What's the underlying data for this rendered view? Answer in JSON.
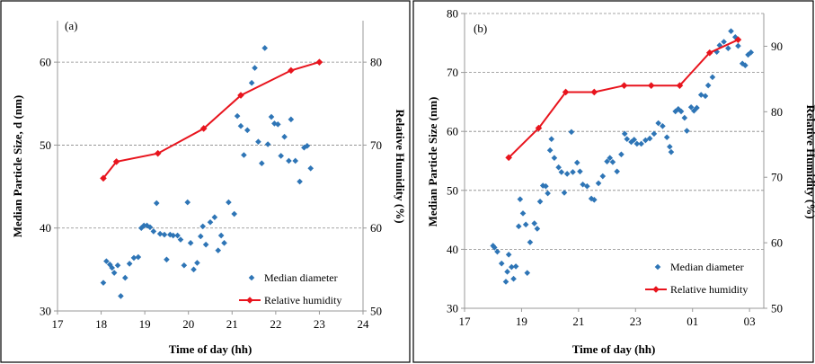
{
  "chart_data": [
    {
      "type": "scatter",
      "panel_label": "(a)",
      "xlabel": "Time of day (hh)",
      "ylabel": "Median Particle Size, d (nm)",
      "y2label": "Relative Humidity (%)",
      "xlim": [
        17,
        24
      ],
      "ylim": [
        30,
        65
      ],
      "y2lim": [
        50,
        85
      ],
      "xticks": [
        "17",
        "18",
        "19",
        "20",
        "21",
        "22",
        "23",
        "24"
      ],
      "yticks": [
        "30",
        "40",
        "50",
        "60"
      ],
      "y2ticks": [
        "50",
        "60",
        "70",
        "80"
      ],
      "grid": "horizontal dashed at major y ticks",
      "legend": [
        "Median diameter",
        "Relative humidity"
      ],
      "legend_position": "bottom-right",
      "colors": {
        "scatter": "#2e75b6",
        "line": "#e8141d"
      },
      "series": [
        {
          "name": "Median diameter",
          "axis": "left",
          "marker": "diamond",
          "points": [
            [
              18.05,
              33.4
            ],
            [
              18.12,
              36
            ],
            [
              18.2,
              35.6
            ],
            [
              18.25,
              35.2
            ],
            [
              18.3,
              34.6
            ],
            [
              18.38,
              35.5
            ],
            [
              18.45,
              31.8
            ],
            [
              18.55,
              34
            ],
            [
              18.65,
              35.7
            ],
            [
              18.75,
              36.4
            ],
            [
              18.85,
              36.5
            ],
            [
              18.92,
              40
            ],
            [
              18.98,
              40.3
            ],
            [
              19.05,
              40.3
            ],
            [
              19.12,
              40.1
            ],
            [
              19.2,
              39.6
            ],
            [
              19.27,
              43
            ],
            [
              19.35,
              39.3
            ],
            [
              19.45,
              39.2
            ],
            [
              19.5,
              36.2
            ],
            [
              19.58,
              39.2
            ],
            [
              19.65,
              39.1
            ],
            [
              19.75,
              39.1
            ],
            [
              19.82,
              38.6
            ],
            [
              19.9,
              35.5
            ],
            [
              19.98,
              43.1
            ],
            [
              20.05,
              38.2
            ],
            [
              20.12,
              35
            ],
            [
              20.2,
              35.8
            ],
            [
              20.28,
              39
            ],
            [
              20.33,
              40.2
            ],
            [
              20.4,
              38
            ],
            [
              20.5,
              40.7
            ],
            [
              20.6,
              41.3
            ],
            [
              20.68,
              37.3
            ],
            [
              20.75,
              39.1
            ],
            [
              20.82,
              38.2
            ],
            [
              20.92,
              43.1
            ],
            [
              21.05,
              41.7
            ],
            [
              21.12,
              53.5
            ],
            [
              21.2,
              52.3
            ],
            [
              21.27,
              48.8
            ],
            [
              21.35,
              51.8
            ],
            [
              21.45,
              57.5
            ],
            [
              21.52,
              59.3
            ],
            [
              21.6,
              50.4
            ],
            [
              21.68,
              47.8
            ],
            [
              21.75,
              61.7
            ],
            [
              21.82,
              50.1
            ],
            [
              21.9,
              53.4
            ],
            [
              21.97,
              52.6
            ],
            [
              22.05,
              52.5
            ],
            [
              22.12,
              48.7
            ],
            [
              22.2,
              51
            ],
            [
              22.3,
              48.1
            ],
            [
              22.35,
              53.1
            ],
            [
              22.45,
              48.1
            ],
            [
              22.55,
              45.6
            ],
            [
              22.65,
              49.7
            ],
            [
              22.72,
              49.9
            ],
            [
              22.8,
              47.2
            ]
          ]
        },
        {
          "name": "Relative humidity",
          "axis": "right",
          "marker": "diamond",
          "points": [
            [
              18.05,
              66
            ],
            [
              18.35,
              68
            ],
            [
              19.3,
              69
            ],
            [
              20.35,
              72
            ],
            [
              21.2,
              76
            ],
            [
              22.35,
              79
            ],
            [
              23.0,
              80
            ]
          ]
        }
      ]
    },
    {
      "type": "scatter",
      "panel_label": "(b)",
      "xlabel": "Time of day (hh)",
      "ylabel": "Median Particle Size (nm)",
      "y2label": "Relative Humidity (%)",
      "xlim": [
        17,
        27.5
      ],
      "ylim": [
        30,
        80
      ],
      "y2lim": [
        50,
        95
      ],
      "xticks": [
        "17",
        "19",
        "21",
        "23",
        "01",
        "03"
      ],
      "xtick_positions": [
        17,
        19,
        21,
        23,
        25,
        27
      ],
      "yticks": [
        "30",
        "40",
        "50",
        "60",
        "70",
        "80"
      ],
      "y2ticks": [
        "50",
        "60",
        "70",
        "80",
        "90"
      ],
      "grid": "horizontal dashed at major y ticks",
      "legend": [
        "Median diameter",
        "Relative humidity"
      ],
      "legend_position": "bottom-right",
      "colors": {
        "scatter": "#2e75b6",
        "line": "#e8141d"
      },
      "series": [
        {
          "name": "Median diameter",
          "axis": "left",
          "marker": "diamond",
          "points": [
            [
              18.0,
              40.6
            ],
            [
              18.05,
              40.3
            ],
            [
              18.15,
              39.6
            ],
            [
              18.3,
              37.6
            ],
            [
              18.45,
              34.5
            ],
            [
              18.5,
              36.2
            ],
            [
              18.55,
              39.1
            ],
            [
              18.65,
              37
            ],
            [
              18.72,
              35
            ],
            [
              18.8,
              37.1
            ],
            [
              18.9,
              43.9
            ],
            [
              18.95,
              48.5
            ],
            [
              19.05,
              46.1
            ],
            [
              19.15,
              44.2
            ],
            [
              19.2,
              36
            ],
            [
              19.3,
              41.2
            ],
            [
              19.45,
              44.4
            ],
            [
              19.55,
              43.5
            ],
            [
              19.65,
              48.1
            ],
            [
              19.75,
              50.8
            ],
            [
              19.85,
              50.7
            ],
            [
              19.92,
              49.5
            ],
            [
              20.0,
              56.8
            ],
            [
              20.05,
              58.7
            ],
            [
              20.15,
              55.5
            ],
            [
              20.3,
              53.9
            ],
            [
              20.4,
              53.1
            ],
            [
              20.5,
              49.6
            ],
            [
              20.6,
              52.8
            ],
            [
              20.75,
              59.9
            ],
            [
              20.8,
              53.1
            ],
            [
              20.95,
              54.7
            ],
            [
              21.05,
              53.2
            ],
            [
              21.15,
              51
            ],
            [
              21.3,
              50.7
            ],
            [
              21.45,
              48.6
            ],
            [
              21.55,
              48.4
            ],
            [
              21.7,
              51.2
            ],
            [
              21.85,
              52.4
            ],
            [
              22.0,
              54.9
            ],
            [
              22.1,
              55.5
            ],
            [
              22.2,
              54.8
            ],
            [
              22.35,
              53.2
            ],
            [
              22.5,
              56.1
            ],
            [
              22.62,
              59.6
            ],
            [
              22.7,
              58.7
            ],
            [
              22.85,
              58.2
            ],
            [
              22.95,
              58.6
            ],
            [
              23.05,
              57.9
            ],
            [
              23.2,
              57.9
            ],
            [
              23.35,
              58.5
            ],
            [
              23.5,
              58.8
            ],
            [
              23.65,
              59.6
            ],
            [
              23.8,
              61.4
            ],
            [
              23.95,
              60.9
            ],
            [
              24.1,
              59
            ],
            [
              24.2,
              57.4
            ],
            [
              24.25,
              56.5
            ],
            [
              24.4,
              63.4
            ],
            [
              24.5,
              63.8
            ],
            [
              24.6,
              63.4
            ],
            [
              24.72,
              62.3
            ],
            [
              24.8,
              60.1
            ],
            [
              24.95,
              64.1
            ],
            [
              25.05,
              63.5
            ],
            [
              25.15,
              64
            ],
            [
              25.3,
              66.2
            ],
            [
              25.45,
              66
            ],
            [
              25.55,
              67.8
            ],
            [
              25.7,
              69.2
            ],
            [
              25.85,
              73.5
            ],
            [
              25.95,
              74.6
            ],
            [
              26.1,
              75.2
            ],
            [
              26.25,
              74.1
            ],
            [
              26.35,
              77
            ],
            [
              26.5,
              76
            ],
            [
              26.6,
              74.5
            ],
            [
              26.75,
              71.5
            ],
            [
              26.85,
              71.2
            ],
            [
              26.95,
              73
            ],
            [
              27.05,
              73.4
            ]
          ]
        },
        {
          "name": "Relative humidity",
          "axis": "right",
          "marker": "diamond",
          "points": [
            [
              18.55,
              73
            ],
            [
              19.6,
              77.5
            ],
            [
              20.55,
              83
            ],
            [
              21.55,
              83
            ],
            [
              22.6,
              84
            ],
            [
              23.55,
              84
            ],
            [
              24.55,
              84
            ],
            [
              25.6,
              89
            ],
            [
              26.6,
              91
            ]
          ]
        }
      ]
    }
  ]
}
